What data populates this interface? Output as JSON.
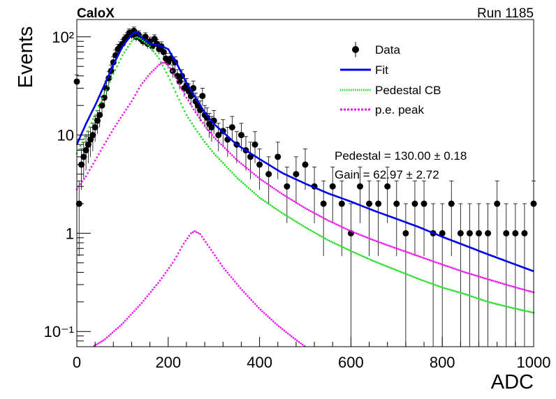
{
  "header": {
    "experiment": "CaloX",
    "run": "Run 1185"
  },
  "fit_results": {
    "pedestal": "Pedestal = 130.00 ± 0.18",
    "gain": "Gain = 62.97 ± 2.72"
  },
  "legend": {
    "data": "Data",
    "fit": "Fit",
    "pedestal_cb": "Pedestal CB",
    "pe_peak": "p.e. peak"
  },
  "colors": {
    "data": "#000000",
    "fit": "#0000ee",
    "pedestal": "#22dd22",
    "pe_peak": "#ee11ee"
  },
  "chart_data": {
    "type": "scatter",
    "xlabel": "ADC",
    "ylabel": "Events",
    "xlim": [
      0,
      1000
    ],
    "ylim": [
      0.07,
      150
    ],
    "y_scale": "log",
    "x_ticks": [
      0,
      200,
      400,
      600,
      800,
      1000
    ],
    "x_tick_labels": [
      "0",
      "200",
      "400",
      "600",
      "800",
      "1000"
    ],
    "y_ticks": [
      0.1,
      1,
      10,
      100
    ],
    "y_tick_labels": [
      "10⁻¹",
      "1",
      "10",
      "10²"
    ],
    "grid": false,
    "legend_position": "top-right",
    "series": [
      {
        "name": "Data",
        "kind": "points",
        "x": [
          0,
          5,
          10,
          15,
          20,
          25,
          30,
          35,
          40,
          45,
          50,
          55,
          60,
          65,
          70,
          75,
          80,
          85,
          90,
          95,
          100,
          105,
          110,
          115,
          120,
          125,
          130,
          135,
          140,
          145,
          150,
          155,
          160,
          165,
          170,
          175,
          180,
          185,
          190,
          195,
          200,
          205,
          210,
          215,
          220,
          225,
          230,
          235,
          240,
          245,
          250,
          255,
          260,
          265,
          270,
          275,
          280,
          285,
          290,
          295,
          300,
          310,
          320,
          330,
          340,
          350,
          360,
          370,
          380,
          390,
          400,
          420,
          440,
          460,
          480,
          500,
          520,
          540,
          560,
          580,
          600,
          620,
          640,
          660,
          680,
          700,
          720,
          740,
          760,
          780,
          800,
          820,
          840,
          860,
          880,
          900,
          920,
          940,
          960,
          980,
          1000
        ],
        "y": [
          35,
          2,
          5,
          6,
          7,
          8,
          9,
          10,
          12,
          14,
          16,
          20,
          24,
          30,
          38,
          45,
          55,
          65,
          75,
          80,
          85,
          95,
          100,
          110,
          105,
          115,
          100,
          105,
          95,
          90,
          100,
          85,
          90,
          80,
          95,
          85,
          75,
          80,
          70,
          60,
          55,
          60,
          45,
          55,
          40,
          35,
          40,
          30,
          32,
          28,
          25,
          30,
          22,
          20,
          18,
          25,
          16,
          15,
          13,
          12,
          14,
          10,
          11,
          9,
          12,
          8,
          10,
          7,
          6,
          8,
          5,
          4,
          6,
          3,
          4,
          5,
          3,
          2,
          3,
          2,
          1,
          3,
          2,
          2,
          3,
          2,
          1,
          2,
          2,
          1,
          1,
          2,
          1,
          1,
          1,
          1,
          2,
          1,
          1,
          1,
          2
        ]
      },
      {
        "name": "Fit",
        "kind": "line",
        "x": [
          0,
          20,
          40,
          60,
          80,
          100,
          120,
          130,
          140,
          160,
          180,
          200,
          220,
          240,
          260,
          280,
          300,
          350,
          400,
          450,
          500,
          550,
          600,
          650,
          700,
          750,
          800,
          850,
          900,
          950,
          1000
        ],
        "y": [
          8,
          13,
          20,
          32,
          52,
          80,
          105,
          115,
          100,
          85,
          82,
          75,
          52,
          34,
          24,
          17,
          13,
          8,
          5.7,
          4.1,
          3.2,
          2.55,
          2.1,
          1.7,
          1.4,
          1.15,
          0.92,
          0.75,
          0.61,
          0.5,
          0.41
        ]
      },
      {
        "name": "Pedestal CB",
        "kind": "dotted",
        "x": [
          0,
          20,
          40,
          60,
          80,
          100,
          120,
          130,
          140,
          160,
          180,
          200,
          220,
          240,
          260,
          280,
          300,
          350,
          400,
          450,
          500,
          550,
          600,
          650,
          700,
          750,
          800,
          850,
          900,
          950,
          1000
        ],
        "y": [
          6.5,
          10,
          16,
          26,
          42,
          65,
          90,
          100,
          95,
          80,
          60,
          40,
          25,
          16,
          11.5,
          8.5,
          6.5,
          3.7,
          2.3,
          1.6,
          1.15,
          0.85,
          0.66,
          0.52,
          0.42,
          0.34,
          0.28,
          0.24,
          0.2,
          0.175,
          0.155
        ]
      },
      {
        "name": "p.e. peak",
        "kind": "dotted",
        "x": [
          0,
          20,
          40,
          60,
          80,
          100,
          120,
          140,
          160,
          180,
          190,
          200,
          220,
          240,
          260,
          280,
          300,
          350,
          400,
          450,
          500,
          550,
          600,
          650,
          700,
          750,
          800,
          850,
          900,
          950,
          1000
        ],
        "y": [
          2.8,
          3.8,
          5.5,
          8,
          11.5,
          16,
          22,
          32,
          42,
          52,
          55,
          52,
          36,
          24,
          17,
          12.5,
          9.5,
          5.6,
          3.6,
          2.5,
          1.8,
          1.35,
          1.05,
          0.85,
          0.7,
          0.58,
          0.48,
          0.4,
          0.34,
          0.29,
          0.25
        ]
      },
      {
        "name": "p.e. peak",
        "kind": "dotted",
        "x": [
          30,
          60,
          100,
          140,
          180,
          210,
          235,
          250,
          258,
          270,
          290,
          320,
          360,
          400,
          440,
          480,
          520
        ],
        "y": [
          0.068,
          0.082,
          0.12,
          0.19,
          0.32,
          0.5,
          0.8,
          1.0,
          1.05,
          0.98,
          0.72,
          0.45,
          0.27,
          0.17,
          0.115,
          0.082,
          0.06
        ]
      }
    ]
  }
}
